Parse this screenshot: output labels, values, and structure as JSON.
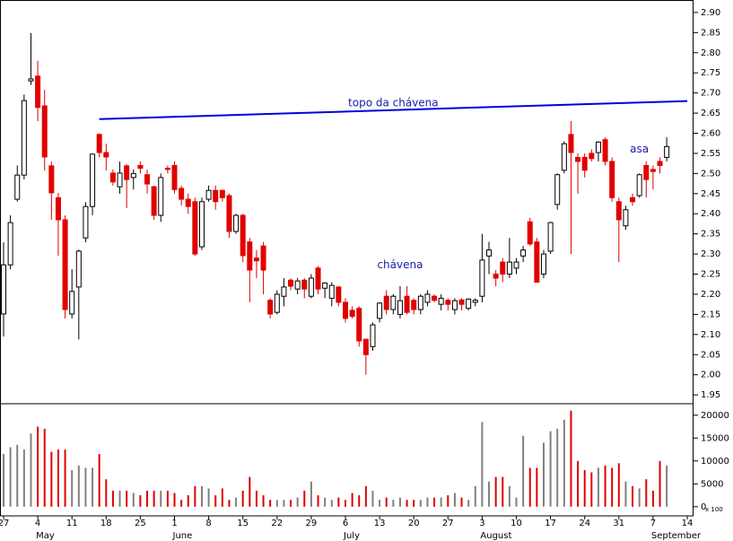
{
  "chart_data": {
    "type": "candlestick",
    "categories": [
      "27",
      null,
      null,
      null,
      null,
      "4",
      null,
      null,
      null,
      null,
      "11",
      null,
      null,
      null,
      null,
      "18",
      null,
      null,
      null,
      null,
      "25",
      null,
      null,
      null,
      null,
      "1",
      null,
      null,
      null,
      null,
      "8",
      null,
      null,
      null,
      null,
      "15",
      null,
      null,
      null,
      null,
      "22",
      null,
      null,
      null,
      null,
      "29",
      null,
      null,
      null,
      null,
      "6",
      null,
      null,
      null,
      null,
      "13",
      null,
      null,
      null,
      null,
      "20",
      null,
      null,
      null,
      null,
      "27",
      null,
      null,
      null,
      null,
      "3",
      null,
      null,
      null,
      null,
      "10",
      null,
      null,
      null,
      null,
      "17",
      null,
      null,
      null,
      null,
      "24",
      null,
      null,
      null,
      null,
      "31",
      null,
      null,
      null,
      null,
      "7",
      null,
      null,
      null,
      null,
      "14"
    ],
    "months": [
      "May",
      "June",
      "July",
      "August",
      "September"
    ],
    "open": [
      2.151,
      2.273,
      2.436,
      2.496,
      2.73,
      2.742,
      2.668,
      2.519,
      2.44,
      2.385,
      2.151,
      2.218,
      2.34,
      2.418,
      2.597,
      2.552,
      2.501,
      2.467,
      2.519,
      2.49,
      2.52,
      2.497,
      2.467,
      2.396,
      2.513,
      2.52,
      2.463,
      2.436,
      2.43,
      2.318,
      2.436,
      2.458,
      2.458,
      2.445,
      2.356,
      2.396,
      2.33,
      2.29,
      2.32,
      2.185,
      2.155,
      2.195,
      2.235,
      2.213,
      2.235,
      2.195,
      2.265,
      2.215,
      2.19,
      2.218,
      2.18,
      2.16,
      2.165,
      2.088,
      2.07,
      2.14,
      2.195,
      2.162,
      2.15,
      2.195,
      2.185,
      2.162,
      2.18,
      2.195,
      2.175,
      2.185,
      2.162,
      2.186,
      2.165,
      2.18,
      2.195,
      2.295,
      2.25,
      2.28,
      2.25,
      2.265,
      2.295,
      2.38,
      2.33,
      2.25,
      2.307,
      2.423,
      2.508,
      2.597,
      2.54,
      2.54,
      2.55,
      2.552,
      2.584,
      2.53,
      2.43,
      2.37,
      2.44,
      2.445,
      2.52,
      2.51,
      2.53,
      2.54,
      null,
      null,
      null
    ],
    "high": [
      2.329,
      2.396,
      2.52,
      2.696,
      2.849,
      2.78,
      2.708,
      2.53,
      2.452,
      2.396,
      2.262,
      2.311,
      2.429,
      2.55,
      2.6,
      2.574,
      2.51,
      2.53,
      2.523,
      2.51,
      2.53,
      2.51,
      2.47,
      2.5,
      2.52,
      2.53,
      2.47,
      2.45,
      2.44,
      2.44,
      2.47,
      2.47,
      2.46,
      2.45,
      2.4,
      2.4,
      2.34,
      2.31,
      2.33,
      2.19,
      2.21,
      2.24,
      2.24,
      2.24,
      2.24,
      2.25,
      2.27,
      2.23,
      2.23,
      2.22,
      2.19,
      2.17,
      2.17,
      2.09,
      2.13,
      2.18,
      2.21,
      2.2,
      2.22,
      2.22,
      2.19,
      2.2,
      2.21,
      2.2,
      2.2,
      2.19,
      2.19,
      2.19,
      2.19,
      2.19,
      2.35,
      2.33,
      2.26,
      2.29,
      2.34,
      2.29,
      2.32,
      2.39,
      2.34,
      2.31,
      2.38,
      2.5,
      2.58,
      2.63,
      2.55,
      2.55,
      2.56,
      2.58,
      2.59,
      2.54,
      2.44,
      2.42,
      2.45,
      2.5,
      2.53,
      2.52,
      2.54,
      2.59,
      null,
      null,
      null
    ],
    "low": [
      2.095,
      2.262,
      2.43,
      2.485,
      2.72,
      2.63,
      2.507,
      2.385,
      2.296,
      2.14,
      2.14,
      2.088,
      2.329,
      2.396,
      2.54,
      2.507,
      2.47,
      2.45,
      2.414,
      2.46,
      2.5,
      2.45,
      2.385,
      2.38,
      2.5,
      2.45,
      2.42,
      2.4,
      2.295,
      2.31,
      2.43,
      2.41,
      2.43,
      2.34,
      2.35,
      2.28,
      2.18,
      2.24,
      2.2,
      2.14,
      2.15,
      2.17,
      2.21,
      2.2,
      2.19,
      2.19,
      2.2,
      2.19,
      2.17,
      2.17,
      2.13,
      2.14,
      2.07,
      2.0,
      2.06,
      2.13,
      2.15,
      2.15,
      2.14,
      2.15,
      2.15,
      2.15,
      2.17,
      2.18,
      2.16,
      2.16,
      2.15,
      2.16,
      2.16,
      2.17,
      2.18,
      2.25,
      2.22,
      2.23,
      2.24,
      2.25,
      2.28,
      2.32,
      2.23,
      2.24,
      2.3,
      2.41,
      2.5,
      2.3,
      2.45,
      2.49,
      2.53,
      2.53,
      2.52,
      2.43,
      2.28,
      2.36,
      2.42,
      2.44,
      2.44,
      2.46,
      2.5,
      2.53,
      null,
      null,
      null
    ],
    "close": [
      2.273,
      2.378,
      2.496,
      2.681,
      2.735,
      2.664,
      2.541,
      2.452,
      2.385,
      2.162,
      2.207,
      2.307,
      2.418,
      2.548,
      2.552,
      2.541,
      2.479,
      2.501,
      2.485,
      2.5,
      2.513,
      2.474,
      2.396,
      2.49,
      2.51,
      2.46,
      2.436,
      2.418,
      2.3,
      2.43,
      2.458,
      2.43,
      2.44,
      2.356,
      2.396,
      2.296,
      2.26,
      2.283,
      2.26,
      2.151,
      2.2,
      2.218,
      2.22,
      2.233,
      2.213,
      2.24,
      2.213,
      2.228,
      2.222,
      2.18,
      2.14,
      2.145,
      2.084,
      2.05,
      2.124,
      2.178,
      2.162,
      2.195,
      2.184,
      2.155,
      2.162,
      2.195,
      2.2,
      2.185,
      2.19,
      2.175,
      2.184,
      2.175,
      2.188,
      2.185,
      2.285,
      2.31,
      2.24,
      2.25,
      2.28,
      2.28,
      2.31,
      2.325,
      2.23,
      2.3,
      2.378,
      2.497,
      2.574,
      2.552,
      2.53,
      2.508,
      2.537,
      2.578,
      2.53,
      2.44,
      2.385,
      2.41,
      2.43,
      2.497,
      2.485,
      2.505,
      2.52,
      2.567,
      null,
      null,
      null
    ],
    "up_color": "#ffffff",
    "down_color": "#e00000",
    "ylim": [
      1.928,
      2.931
    ],
    "yticks": [
      1.95,
      {
        "value": 2.0,
        "label": "2.00"
      },
      2.05,
      {
        "value": 2.1,
        "label": "2.10"
      },
      2.15,
      {
        "value": 2.2,
        "label": "2.20"
      },
      2.25,
      {
        "value": 2.3,
        "label": "2.30"
      },
      2.35,
      {
        "value": 2.4,
        "label": "2.40"
      },
      2.45,
      {
        "value": 2.5,
        "label": "2.50"
      },
      2.55,
      {
        "value": 2.6,
        "label": "2.60"
      },
      2.65,
      {
        "value": 2.7,
        "label": "2.70"
      },
      2.75,
      {
        "value": 2.8,
        "label": "2.80"
      },
      2.85,
      {
        "value": 2.9,
        "label": "2.90"
      }
    ],
    "trendline": {
      "x": [
        14,
        100
      ],
      "values": [
        2.635,
        2.68
      ],
      "color": "#0000e0"
    },
    "annotations": [
      {
        "text": "topo da chávena",
        "x": 57,
        "y": 2.675
      },
      {
        "text": "chávena",
        "x": 58,
        "y": 2.272
      },
      {
        "text": "asa",
        "x": 93,
        "y": 2.56
      }
    ],
    "volume": {
      "values": [
        11500,
        13000,
        13500,
        12500,
        16000,
        17500,
        17000,
        12000,
        12500,
        12500,
        8000,
        9000,
        8500,
        8500,
        11500,
        6000,
        3500,
        3500,
        3500,
        3000,
        2500,
        3500,
        3500,
        3500,
        3500,
        3000,
        1500,
        2500,
        4500,
        4500,
        4000,
        2500,
        4000,
        1500,
        2000,
        3500,
        6500,
        3500,
        2500,
        1500,
        1500,
        1500,
        1500,
        2000,
        3500,
        5500,
        2500,
        2000,
        1500,
        2000,
        1500,
        3000,
        2500,
        4500,
        3500,
        1500,
        2000,
        1500,
        2000,
        1500,
        1500,
        1500,
        2000,
        2000,
        2000,
        2500,
        3000,
        2000,
        1500,
        4500,
        18500,
        5500,
        6500,
        6500,
        4500,
        2000,
        15500,
        8500,
        8500,
        14000,
        16500,
        17000,
        19000,
        21000,
        10000,
        8000,
        7500,
        8500,
        9000,
        8500,
        9500,
        5500,
        4500,
        4000,
        6000,
        3500,
        10000,
        9000,
        null,
        null,
        null
      ],
      "up_color": "#808080",
      "ylim": [
        -2000,
        22500
      ],
      "yticks": [
        0,
        5000,
        10000,
        15000,
        20000
      ],
      "unit": "x 100"
    }
  }
}
